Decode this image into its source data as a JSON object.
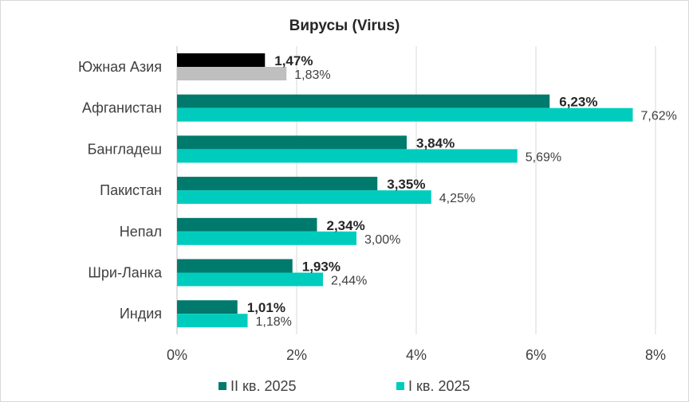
{
  "chart_data": {
    "type": "bar",
    "orientation": "horizontal",
    "title": "Вирусы (Virus)",
    "categories": [
      "Южная Азия",
      "Афганистан",
      "Бангладеш",
      "Пакистан",
      "Непал",
      "Шри-Ланка",
      "Индия"
    ],
    "series": [
      {
        "name": "II кв. 2025",
        "values": [
          1.47,
          6.23,
          3.84,
          3.35,
          2.34,
          1.93,
          1.01
        ],
        "labels": [
          "1,47%",
          "6,23%",
          "3,84%",
          "3,35%",
          "2,34%",
          "1,93%",
          "1,01%"
        ],
        "color": "#007A6C",
        "highlight_color": "#000000"
      },
      {
        "name": "I кв. 2025",
        "values": [
          1.83,
          7.62,
          5.69,
          4.25,
          3.0,
          2.44,
          1.18
        ],
        "labels": [
          "1,83%",
          "7,62%",
          "5,69%",
          "4,25%",
          "3,00%",
          "2,44%",
          "1,18%"
        ],
        "color": "#00CCBE",
        "highlight_color": "#BFBFBF"
      }
    ],
    "xlim": [
      0,
      8
    ],
    "xticks": [
      "0%",
      "2%",
      "4%",
      "6%",
      "8%"
    ],
    "grid": true,
    "legend": "bottom"
  }
}
